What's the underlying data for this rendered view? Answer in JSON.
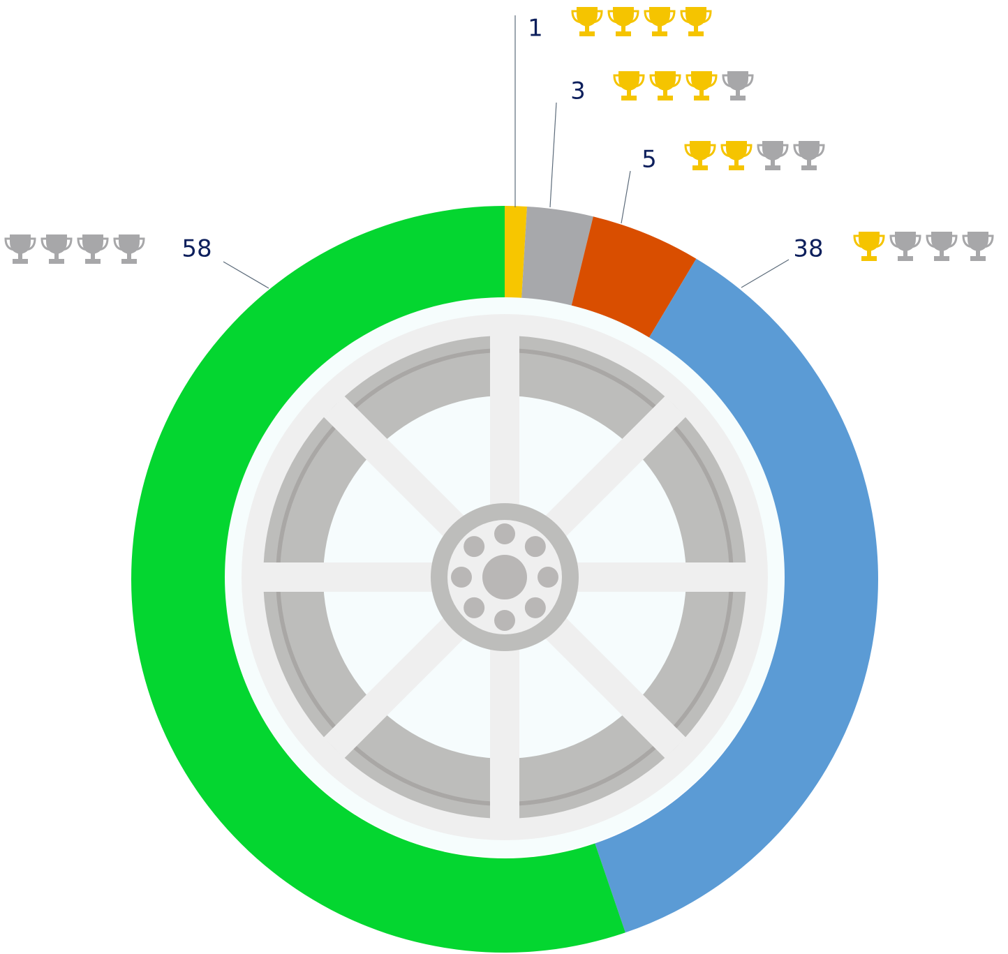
{
  "chart_data": {
    "type": "donut",
    "values": [
      1,
      3,
      5,
      38,
      58
    ],
    "colors": [
      "#f7c600",
      "#a7a8ab",
      "#d94e00",
      "#5b9bd5",
      "#04d630"
    ],
    "trophies": {
      "gold": [
        4,
        3,
        2,
        1,
        0
      ],
      "slots": 4,
      "gold_color": "#f5c400",
      "grey_color": "#a7a7a9"
    }
  }
}
